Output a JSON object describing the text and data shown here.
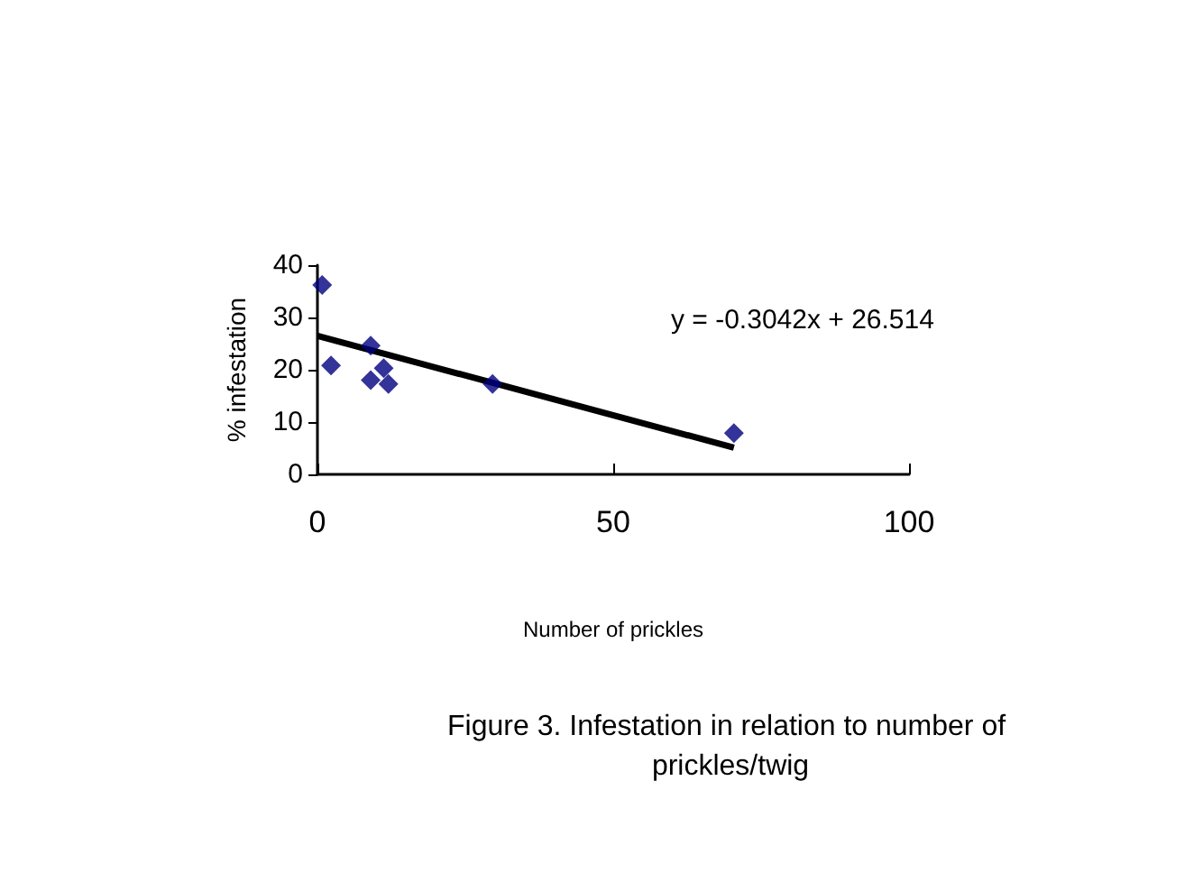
{
  "chart_data": {
    "type": "scatter",
    "title": "Figure 3. Infestation in relation to number of prickles/twig",
    "xlabel": "Number of prickles",
    "ylabel": "% infestation",
    "annotations": [
      "y = -0.3042x + 26.514"
    ],
    "series": [
      {
        "color": "#000080",
        "marker": "diamond",
        "x": [
          0.8,
          2.3,
          9.0,
          9.0,
          11.2,
          12.0,
          29.6,
          70.4
        ],
        "values": [
          36.2,
          20.8,
          24.6,
          18.0,
          20.3,
          17.3,
          17.3,
          7.9
        ]
      },
      {
        "type": "line",
        "color": "#000000",
        "x": [
          0,
          70.4
        ],
        "values": [
          26.5,
          5.1
        ]
      }
    ],
    "xlim": [
      0,
      100
    ],
    "xticks": [
      0,
      50,
      100
    ],
    "ylim": [
      0,
      40
    ],
    "yticks": [
      0,
      10,
      20,
      30,
      40
    ],
    "grid": false
  }
}
